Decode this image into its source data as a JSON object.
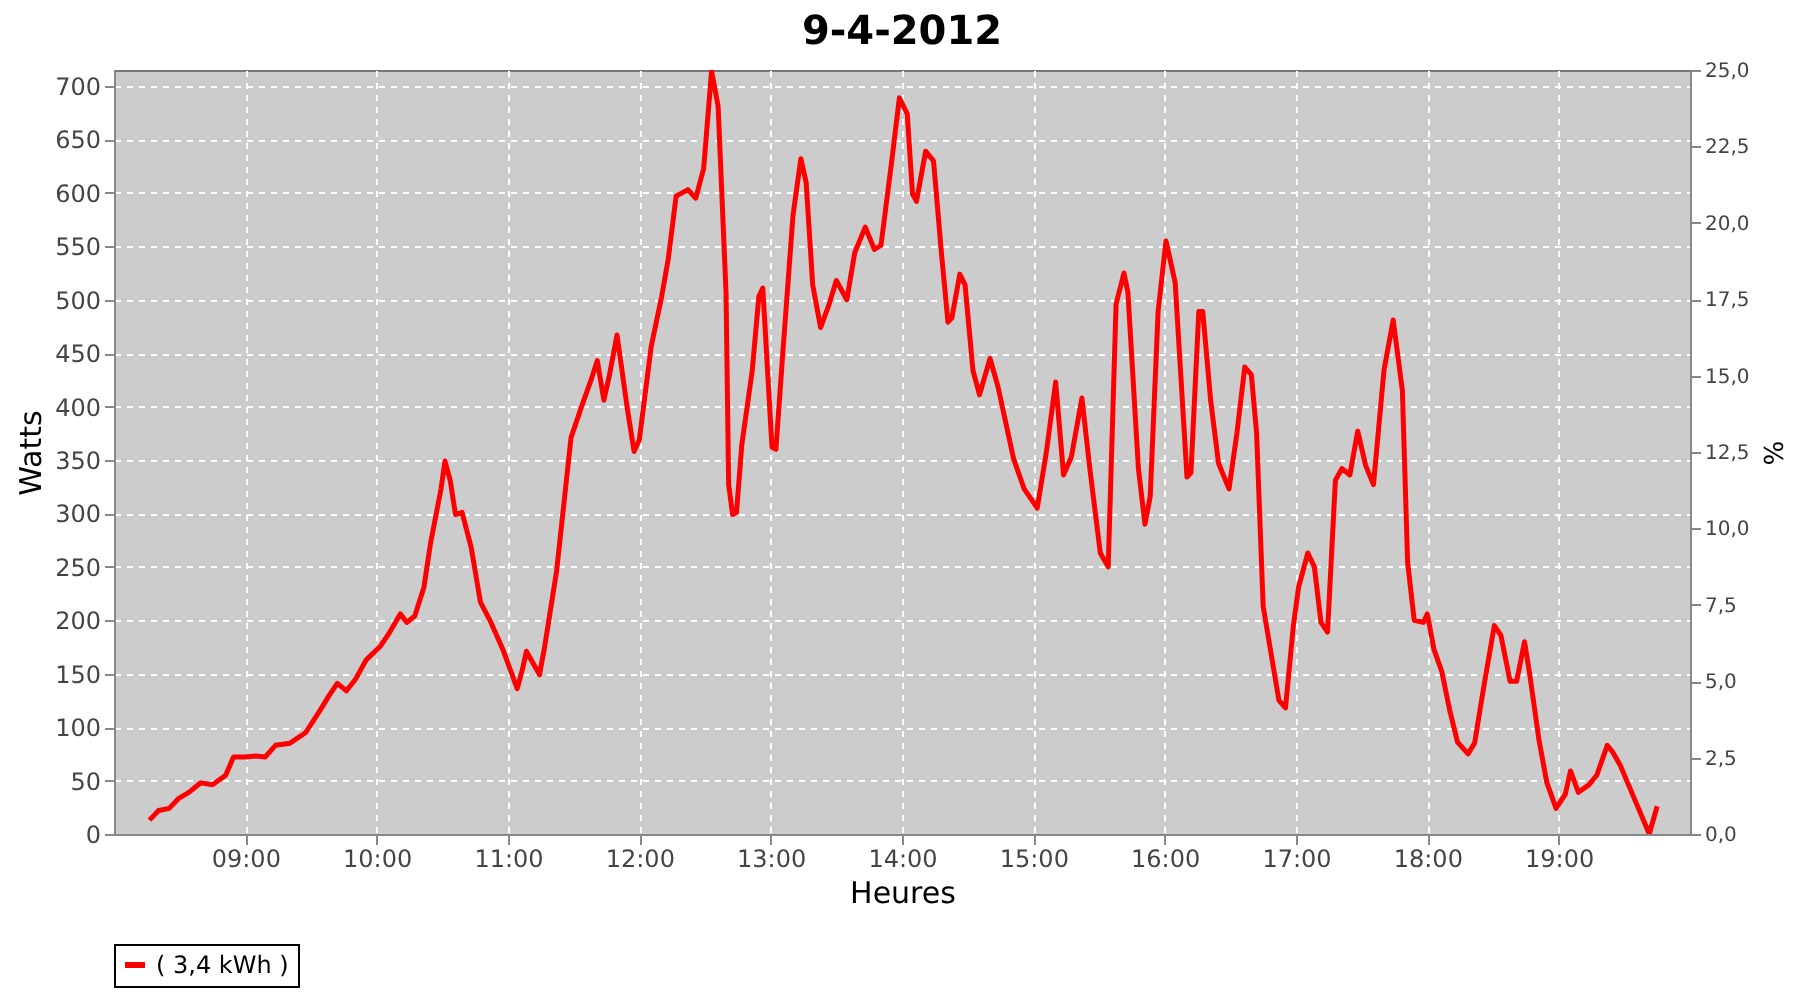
{
  "chart_data": {
    "type": "line",
    "title": "9-4-2012",
    "xlabel": "Heures",
    "ylabel": "Watts",
    "y2label": "%",
    "xlim": [
      8.0,
      20.0
    ],
    "xticks": [
      {
        "value": 9,
        "label": "09:00"
      },
      {
        "value": 10,
        "label": "10:00"
      },
      {
        "value": 11,
        "label": "11:00"
      },
      {
        "value": 12,
        "label": "12:00"
      },
      {
        "value": 13,
        "label": "13:00"
      },
      {
        "value": 14,
        "label": "14:00"
      },
      {
        "value": 15,
        "label": "15:00"
      },
      {
        "value": 16,
        "label": "16:00"
      },
      {
        "value": 17,
        "label": "17:00"
      },
      {
        "value": 18,
        "label": "18:00"
      },
      {
        "value": 19,
        "label": "19:00"
      }
    ],
    "ylim": [
      0,
      715
    ],
    "yticks": [
      0,
      50,
      100,
      150,
      200,
      250,
      300,
      350,
      400,
      450,
      500,
      550,
      600,
      650,
      700
    ],
    "y2lim": [
      0,
      25
    ],
    "y2ticks": [
      {
        "value": 0,
        "label": "0,0"
      },
      {
        "value": 2.5,
        "label": "2,5"
      },
      {
        "value": 5,
        "label": "5,0"
      },
      {
        "value": 7.5,
        "label": "7,5"
      },
      {
        "value": 10,
        "label": "10,0"
      },
      {
        "value": 12.5,
        "label": "12,5"
      },
      {
        "value": 15,
        "label": "15,0"
      },
      {
        "value": 17.5,
        "label": "17,5"
      },
      {
        "value": 20,
        "label": "20,0"
      },
      {
        "value": 22.5,
        "label": "22,5"
      },
      {
        "value": 25,
        "label": "25,0"
      }
    ],
    "grid": true,
    "legend": "bottom",
    "marker": "none",
    "line_style": "solid",
    "x": [
      8.27,
      8.34,
      8.42,
      8.49,
      8.57,
      8.66,
      8.75,
      8.85,
      8.91,
      9.0,
      9.08,
      9.15,
      9.23,
      9.34,
      9.46,
      9.57,
      9.64,
      9.7,
      9.77,
      9.84,
      9.92,
      10.03,
      10.1,
      10.18,
      10.23,
      10.29,
      10.36,
      10.41,
      10.49,
      10.52,
      10.56,
      10.6,
      10.65,
      10.72,
      10.79,
      10.87,
      10.96,
      11.07,
      11.11,
      11.14,
      11.24,
      11.28,
      11.37,
      11.48,
      11.56,
      11.63,
      11.68,
      11.73,
      11.77,
      11.83,
      11.91,
      11.96,
      12.0,
      12.09,
      12.17,
      12.22,
      12.28,
      12.37,
      12.43,
      12.49,
      12.55,
      12.6,
      12.66,
      12.68,
      12.71,
      12.74,
      12.78,
      12.86,
      12.91,
      12.94,
      13.01,
      13.04,
      13.09,
      13.17,
      13.23,
      13.27,
      13.32,
      13.38,
      13.44,
      13.5,
      13.58,
      13.64,
      13.72,
      13.79,
      13.84,
      13.92,
      13.98,
      14.04,
      14.08,
      14.11,
      14.18,
      14.24,
      14.3,
      14.35,
      14.38,
      14.44,
      14.48,
      14.54,
      14.59,
      14.67,
      14.73,
      14.85,
      14.93,
      15.03,
      15.1,
      15.17,
      15.23,
      15.29,
      15.37,
      15.43,
      15.51,
      15.57,
      15.63,
      15.69,
      15.72,
      15.8,
      15.85,
      15.89,
      15.95,
      16.01,
      16.08,
      16.17,
      16.2,
      16.26,
      16.29,
      16.35,
      16.41,
      16.49,
      16.55,
      16.61,
      16.66,
      16.7,
      16.75,
      16.81,
      16.87,
      16.92,
      16.98,
      17.02,
      17.09,
      17.14,
      17.19,
      17.24,
      17.3,
      17.35,
      17.41,
      17.47,
      17.53,
      17.59,
      17.67,
      17.74,
      17.81,
      17.85,
      17.9,
      17.97,
      18.0,
      18.05,
      18.11,
      18.17,
      18.23,
      18.31,
      18.36,
      18.43,
      18.51,
      18.56,
      18.63,
      18.68,
      18.74,
      18.78,
      18.85,
      18.91,
      18.98,
      19.05,
      19.09,
      19.15,
      19.23,
      19.29,
      19.37,
      19.41,
      19.47,
      19.69,
      19.75
    ],
    "series": [
      {
        "name": "( 3,4 kWh )",
        "color": "#ff0000",
        "values": [
          13,
          22,
          24,
          33,
          39,
          48,
          46,
          55,
          72,
          72,
          73,
          72,
          83,
          85,
          95,
          116,
          130,
          141,
          134,
          145,
          163,
          176,
          189,
          206,
          198,
          204,
          231,
          272,
          323,
          349,
          331,
          299,
          301,
          268,
          217,
          198,
          173,
          136,
          154,
          171,
          149,
          176,
          246,
          371,
          400,
          424,
          443,
          406,
          428,
          467,
          397,
          358,
          369,
          456,
          503,
          538,
          597,
          603,
          595,
          623,
          714,
          681,
          507,
          327,
          299,
          301,
          364,
          434,
          503,
          511,
          362,
          360,
          446,
          579,
          632,
          610,
          514,
          474,
          494,
          518,
          500,
          544,
          568,
          547,
          551,
          628,
          689,
          674,
          599,
          592,
          639,
          630,
          544,
          479,
          483,
          524,
          514,
          434,
          411,
          445,
          419,
          351,
          323,
          305,
          358,
          423,
          336,
          353,
          408,
          342,
          263,
          250,
          496,
          525,
          507,
          342,
          290,
          316,
          489,
          555,
          516,
          334,
          338,
          489,
          489,
          406,
          347,
          323,
          375,
          437,
          430,
          375,
          213,
          169,
          125,
          118,
          195,
          231,
          263,
          250,
          198,
          189,
          331,
          342,
          336,
          377,
          345,
          327,
          434,
          481,
          415,
          254,
          200,
          198,
          206,
          173,
          152,
          116,
          86,
          75,
          85,
          138,
          195,
          186,
          143,
          143,
          180,
          149,
          88,
          48,
          24,
          37,
          59,
          39,
          46,
          55,
          83,
          77,
          64,
          0,
          26
        ]
      }
    ]
  }
}
